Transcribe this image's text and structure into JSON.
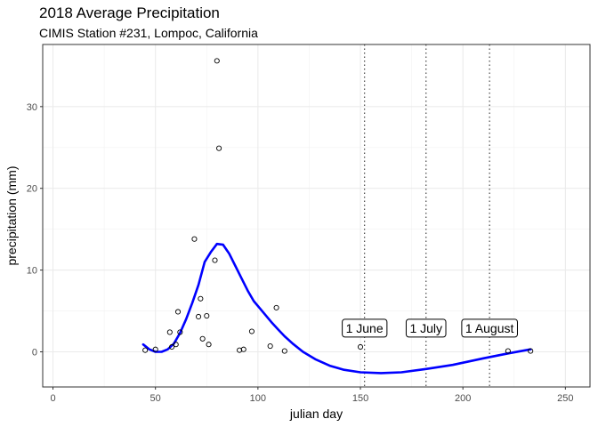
{
  "chart_data": {
    "type": "scatter",
    "title": "2018 Average Precipitation",
    "subtitle": "CIMIS Station #231, Lompoc, California",
    "xlabel": "julian day",
    "ylabel": "precipitation (mm)",
    "xlim": [
      -5,
      262
    ],
    "ylim": [
      -4.3,
      37.6
    ],
    "xticks": [
      0,
      50,
      100,
      150,
      200,
      250
    ],
    "yticks": [
      0,
      10,
      20,
      30
    ],
    "grid": true,
    "points": [
      {
        "x": 45,
        "y": 0.2
      },
      {
        "x": 50,
        "y": 0.3
      },
      {
        "x": 57,
        "y": 2.4
      },
      {
        "x": 58,
        "y": 0.6
      },
      {
        "x": 60,
        "y": 0.9
      },
      {
        "x": 61,
        "y": 4.9
      },
      {
        "x": 62,
        "y": 2.4
      },
      {
        "x": 69,
        "y": 13.8
      },
      {
        "x": 71,
        "y": 4.3
      },
      {
        "x": 72,
        "y": 6.5
      },
      {
        "x": 73,
        "y": 1.6
      },
      {
        "x": 75,
        "y": 4.4
      },
      {
        "x": 76,
        "y": 0.9
      },
      {
        "x": 79,
        "y": 11.2
      },
      {
        "x": 80,
        "y": 35.6
      },
      {
        "x": 81,
        "y": 24.9
      },
      {
        "x": 91,
        "y": 0.2
      },
      {
        "x": 93,
        "y": 0.3
      },
      {
        "x": 97,
        "y": 2.5
      },
      {
        "x": 106,
        "y": 0.7
      },
      {
        "x": 109,
        "y": 5.4
      },
      {
        "x": 113,
        "y": 0.1
      },
      {
        "x": 150,
        "y": 0.6
      },
      {
        "x": 222,
        "y": 0.1
      },
      {
        "x": 233,
        "y": 0.1
      }
    ],
    "smooth_line": {
      "color": "#0000ff",
      "x": [
        44,
        47,
        50,
        53,
        56,
        59,
        62,
        65,
        68,
        71,
        74,
        77,
        80,
        83,
        86,
        89,
        92,
        95,
        98,
        101,
        104,
        107,
        110,
        113,
        117,
        122,
        128,
        135,
        142,
        150,
        160,
        170,
        182,
        195,
        210,
        222,
        233
      ],
      "y": [
        0.9,
        0.3,
        0.0,
        0.0,
        0.3,
        1.0,
        2.3,
        4.0,
        6.0,
        8.2,
        11.0,
        12.2,
        13.2,
        13.1,
        12.0,
        10.5,
        9.0,
        7.5,
        6.2,
        5.3,
        4.4,
        3.5,
        2.7,
        1.9,
        1.0,
        0.0,
        -0.9,
        -1.7,
        -2.2,
        -2.5,
        -2.6,
        -2.5,
        -2.1,
        -1.6,
        -0.8,
        -0.2,
        0.3
      ]
    },
    "vlines": [
      152,
      182,
      213
    ],
    "annotations": [
      {
        "x": 152,
        "y": 2.9,
        "text": "1 June"
      },
      {
        "x": 182,
        "y": 2.9,
        "text": "1 July"
      },
      {
        "x": 213,
        "y": 2.9,
        "text": "1 August"
      }
    ]
  }
}
